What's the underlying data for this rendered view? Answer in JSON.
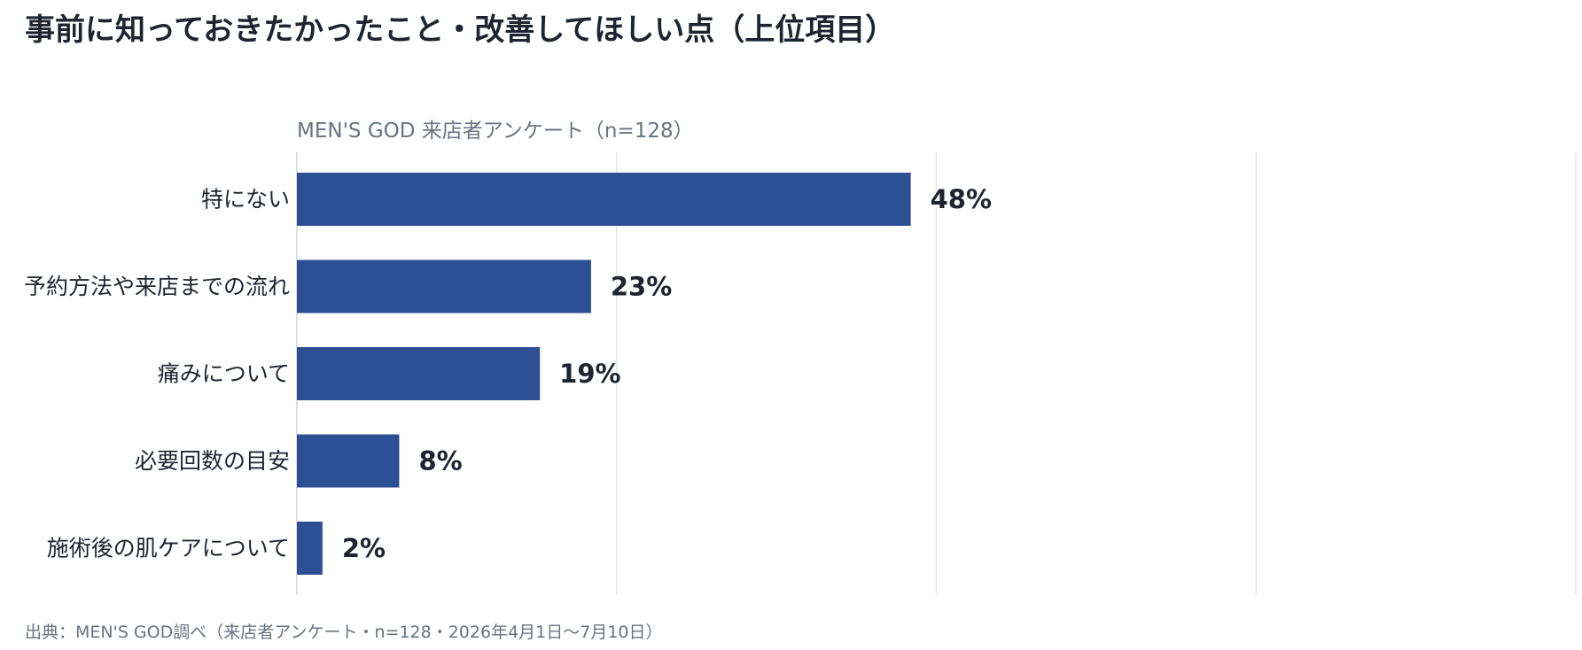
{
  "title": "事前に知っておきたかったこと・改善してほしい点（上位項目）",
  "subtitle": "MEN'S GOD 来店者アンケート（n=128）",
  "source": "出典：MEN'S GOD調べ（来店者アンケート・n=128・2026年4月1日〜7月10日）",
  "colors": {
    "bar": "#2c5093",
    "grid": "#e5e7eb",
    "axis": "#d1d5db"
  },
  "chart_data": {
    "type": "bar",
    "orientation": "horizontal",
    "categories": [
      "特にない",
      "予約方法や来店までの流れ",
      "痛みについて",
      "必要回数の目安",
      "施術後の肌ケアについて"
    ],
    "values": [
      48,
      23,
      19,
      8,
      2
    ],
    "value_labels": [
      "48%",
      "23%",
      "19%",
      "8%",
      "2%"
    ],
    "unit": "%",
    "xlim": [
      0,
      100
    ],
    "gridlines": [
      0,
      25,
      50,
      75,
      100
    ],
    "grid": true,
    "legend": "none"
  }
}
